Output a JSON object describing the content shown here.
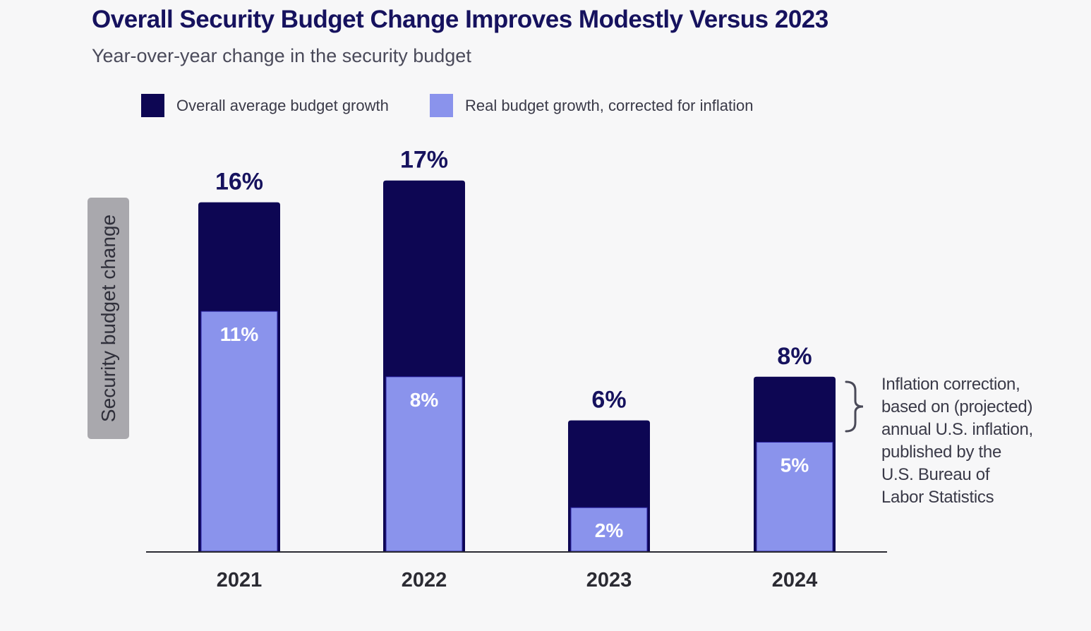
{
  "title": "Overall Security Budget Change Improves Modestly Versus 2023",
  "subtitle": "Year-over-year change in the security budget",
  "colors": {
    "overall": "#0d0653",
    "real": "#8a93ec",
    "axis": "#2b2b33",
    "text_dark": "#16125e"
  },
  "chart_data": {
    "type": "bar",
    "title": "Overall Security Budget Change Improves Modestly Versus 2023",
    "subtitle": "Year-over-year change in the security budget",
    "xlabel": "",
    "ylabel": "Security budget change",
    "ylim": [
      0,
      17
    ],
    "grid": false,
    "legend_position": "top",
    "categories": [
      "2021",
      "2022",
      "2023",
      "2024"
    ],
    "series": [
      {
        "name": "Overall average budget growth",
        "values": [
          16,
          17,
          6,
          8
        ],
        "labels": [
          "16%",
          "17%",
          "6%",
          "8%"
        ]
      },
      {
        "name": "Real budget growth, corrected for inflation",
        "values": [
          11,
          8,
          2,
          5
        ],
        "labels": [
          "11%",
          "8%",
          "2%",
          "5%"
        ]
      }
    ],
    "annotation": {
      "lines": [
        "Inflation correction,",
        "based on (projected)",
        "annual U.S. inflation,",
        "published by the",
        "U.S. Bureau of",
        "Labor Statistics"
      ]
    }
  }
}
